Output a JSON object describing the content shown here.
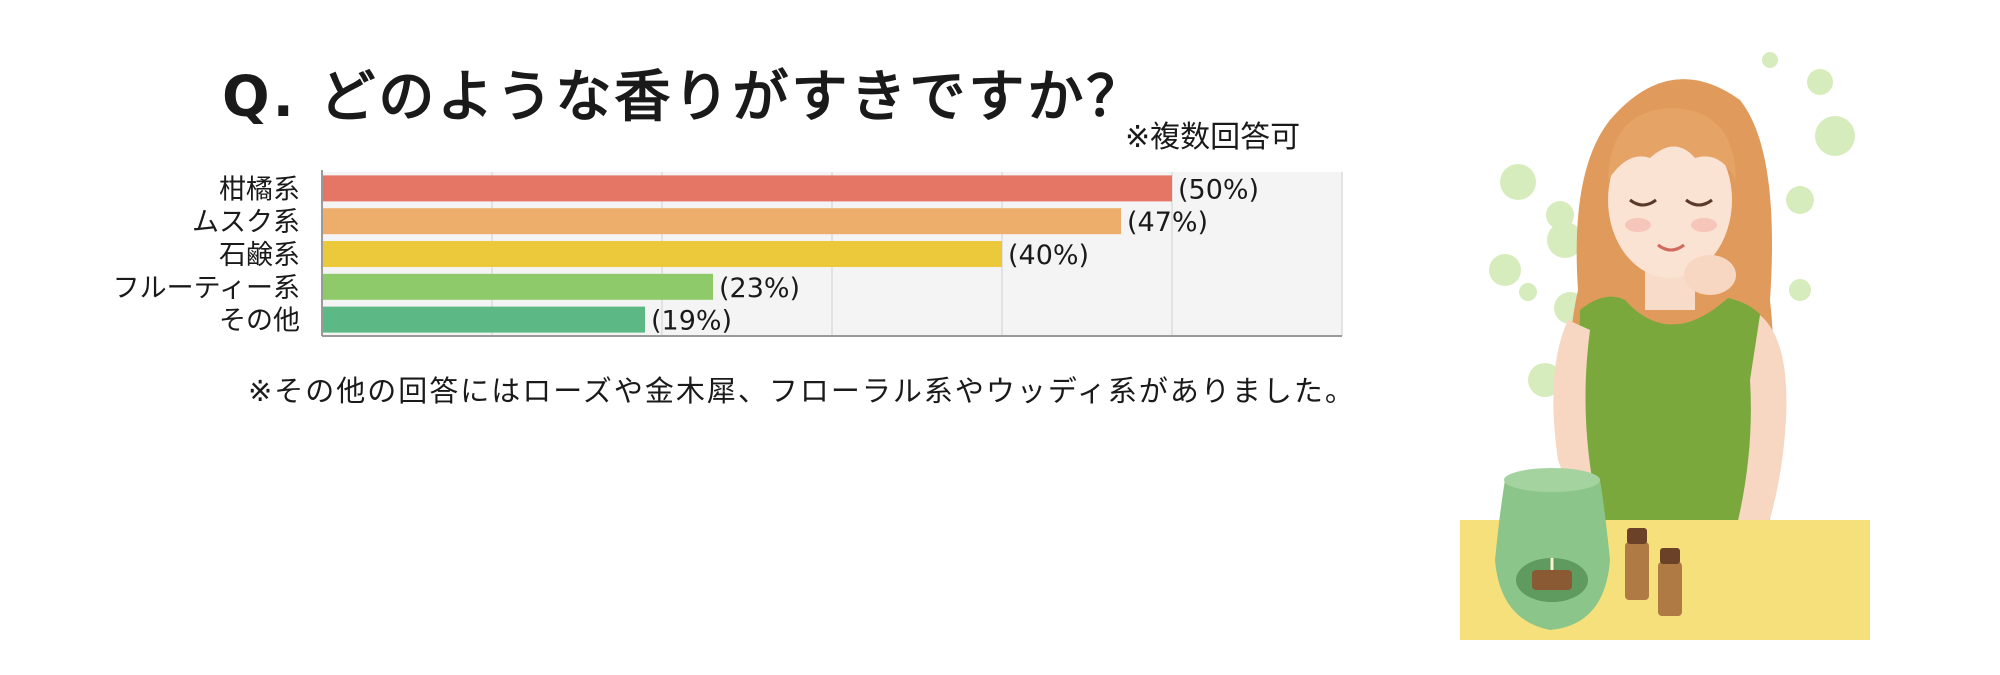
{
  "question": "Q. どのような香りがすきですか？",
  "note_multiple": "※複数回答可",
  "footnote": "※その他の回答にはローズや金木犀、フローラル系やウッディ系がありました。",
  "chart_data": {
    "type": "bar",
    "orientation": "horizontal",
    "categories": [
      "柑橘系",
      "ムスク系",
      "石鹸系",
      "フルーティー系",
      "その他"
    ],
    "values": [
      50,
      47,
      40,
      23,
      19
    ],
    "value_labels": [
      "(50%)",
      "(47%)",
      "(40%)",
      "(23%)",
      "(19%)"
    ],
    "unit": "%",
    "xlim": [
      0,
      60
    ],
    "grid": true,
    "colors": [
      "#e57565",
      "#ecae6a",
      "#ecc93b",
      "#8ec96a",
      "#5cb985"
    ]
  },
  "illustration": {
    "icon": "woman-with-aroma-diffuser",
    "colors": {
      "hair": "#e09a5c",
      "dress": "#7aa83c",
      "table": "#f5e07c",
      "diffuser": "#8cc58a"
    }
  }
}
